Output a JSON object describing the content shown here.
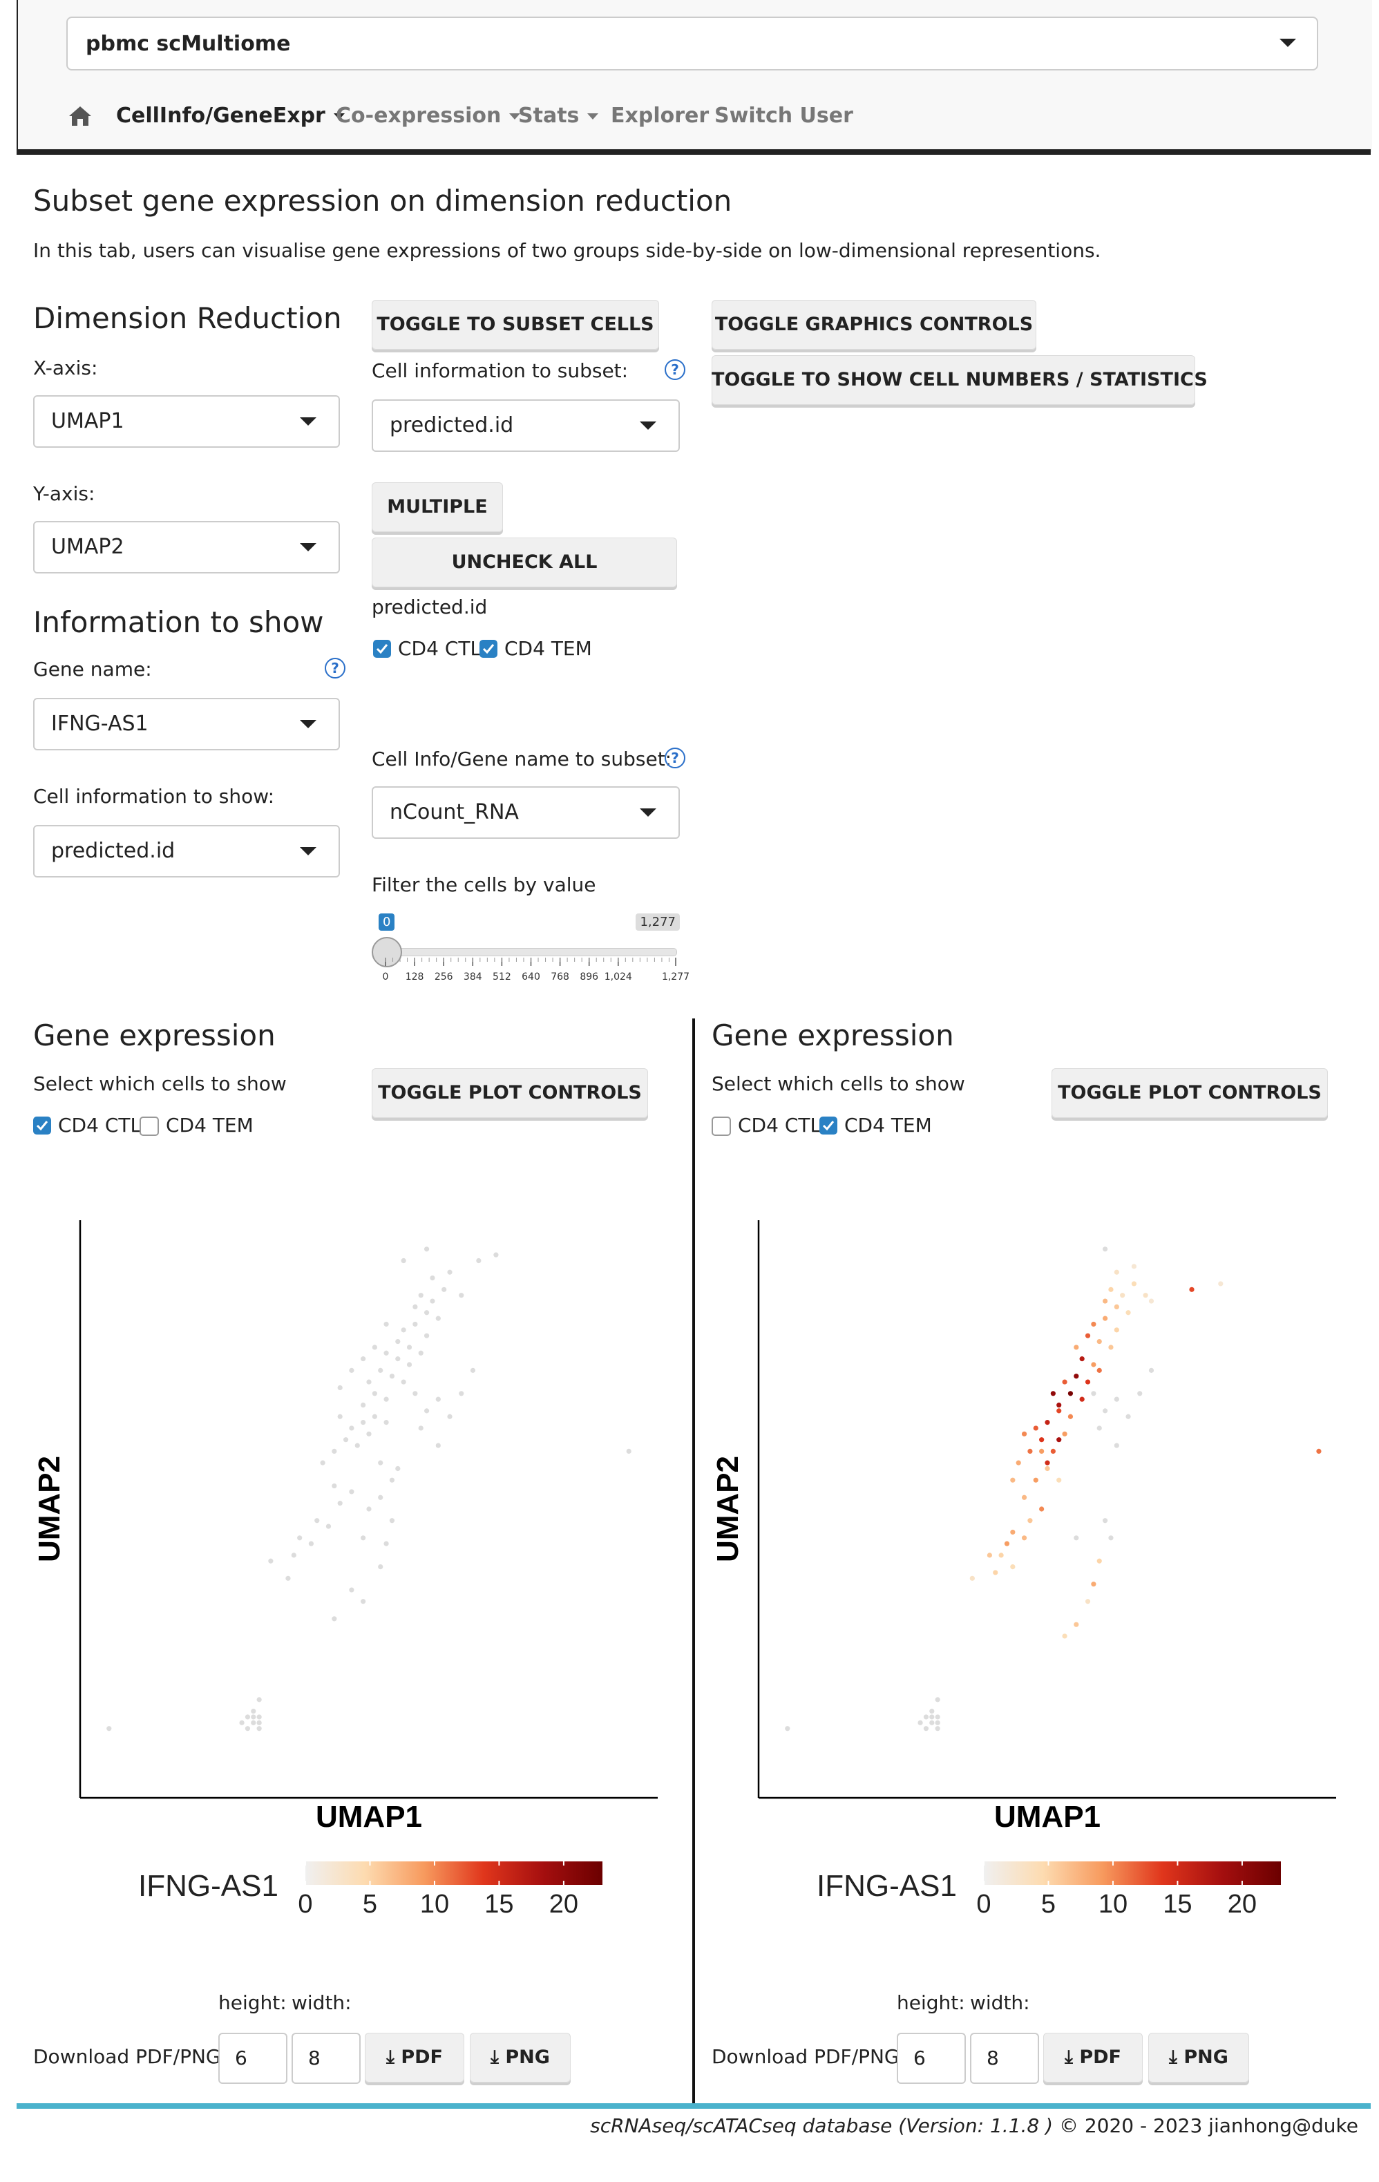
{
  "navbar": {
    "dataset": "pbmc scMultiome",
    "home_icon": "home-icon",
    "items": [
      {
        "label": "CellInfo/GeneExpr",
        "dropdown": true
      },
      {
        "label": "Co-expression",
        "dropdown": true
      },
      {
        "label": "Stats",
        "dropdown": true
      },
      {
        "label": "Explorer",
        "dropdown": false
      },
      {
        "label": "Switch User",
        "dropdown": false
      }
    ]
  },
  "page": {
    "title": "Subset gene expression on dimension reduction",
    "subtitle": "In this tab, users can visualise gene expressions of two groups side-by-side on low-dimensional representions."
  },
  "dimred": {
    "heading": "Dimension Reduction",
    "x_label": "X-axis:",
    "x_value": "UMAP1",
    "y_label": "Y-axis:",
    "y_value": "UMAP2"
  },
  "info": {
    "heading": "Information to show",
    "gene_label": "Gene name:",
    "gene_value": "IFNG-AS1",
    "cellinfo_label": "Cell information to show:",
    "cellinfo_value": "predicted.id"
  },
  "subset": {
    "toggle_label": "TOGGLE TO SUBSET CELLS",
    "cellinfo_label": "Cell information to subset:",
    "cellinfo_value": "predicted.id",
    "multiple_label": "MULTIPLE",
    "uncheck_label": "UNCHECK ALL",
    "group_label": "predicted.id",
    "options": [
      {
        "label": "CD4 CTL",
        "checked": true
      },
      {
        "label": "CD4 TEM",
        "checked": true
      }
    ],
    "gene_subset_label": "Cell Info/Gene name to subset:",
    "gene_subset_value": "nCount_RNA",
    "filter_label": "Filter the cells by value",
    "slider": {
      "min": 0,
      "max": 1277,
      "value_low_label": "0",
      "value_high_label": "1,277",
      "ticks": [
        "0",
        "128",
        "256",
        "384",
        "512",
        "640",
        "768",
        "896",
        "1,024",
        "1,277"
      ]
    }
  },
  "controls": {
    "graphics_label": "TOGGLE GRAPHICS CONTROLS",
    "stats_label": "TOGGLE TO SHOW CELL NUMBERS / STATISTICS"
  },
  "panels": [
    {
      "heading": "Gene expression",
      "select_label": "Select which cells to show",
      "toggle_label": "TOGGLE PLOT CONTROLS",
      "options": [
        {
          "label": "CD4 CTL",
          "checked": true
        },
        {
          "label": "CD4 TEM",
          "checked": false
        }
      ],
      "height_label": "height:",
      "width_label": "width:",
      "download_label": "Download PDF/PNG",
      "height_value": "6",
      "width_value": "8",
      "pdf_label": "PDF",
      "png_label": "PNG"
    },
    {
      "heading": "Gene expression",
      "select_label": "Select which cells to show",
      "toggle_label": "TOGGLE PLOT CONTROLS",
      "options": [
        {
          "label": "CD4 CTL",
          "checked": false
        },
        {
          "label": "CD4 TEM",
          "checked": true
        }
      ],
      "height_label": "height:",
      "width_label": "width:",
      "download_label": "Download PDF/PNG",
      "height_value": "6",
      "width_value": "8",
      "pdf_label": "PDF",
      "png_label": "PNG"
    }
  ],
  "chart_data": [
    {
      "type": "scatter",
      "xlabel": "UMAP1",
      "ylabel": "UMAP2",
      "legend_title": "IFNG-AS1",
      "colorbar_ticks": [
        "0",
        "5",
        "10",
        "15",
        "20"
      ],
      "colorbar_range": [
        0,
        23
      ],
      "colors": [
        "#f0f0f0",
        "#fddbb0",
        "#f79a5e",
        "#e0361c",
        "#a50f0f",
        "#6b0000"
      ],
      "cells_shown": "CD4 CTL",
      "points": [
        [
          0.05,
          0.12,
          0
        ],
        [
          0.28,
          0.13,
          0
        ],
        [
          0.29,
          0.14,
          0
        ],
        [
          0.3,
          0.13,
          0
        ],
        [
          0.29,
          0.12,
          0
        ],
        [
          0.31,
          0.14,
          0
        ],
        [
          0.3,
          0.15,
          0
        ],
        [
          0.31,
          0.12,
          0
        ],
        [
          0.3,
          0.14,
          0
        ],
        [
          0.31,
          0.17,
          0
        ],
        [
          0.31,
          0.13,
          0
        ],
        [
          0.44,
          0.31,
          0
        ],
        [
          0.47,
          0.36,
          0
        ],
        [
          0.49,
          0.34,
          0
        ],
        [
          0.52,
          0.4,
          0
        ],
        [
          0.53,
          0.44,
          0
        ],
        [
          0.54,
          0.48,
          0
        ],
        [
          0.49,
          0.45,
          0
        ],
        [
          0.5,
          0.5,
          0
        ],
        [
          0.43,
          0.47,
          0
        ],
        [
          0.45,
          0.51,
          0
        ],
        [
          0.44,
          0.54,
          0
        ],
        [
          0.47,
          0.53,
          0
        ],
        [
          0.52,
          0.52,
          0
        ],
        [
          0.54,
          0.55,
          0
        ],
        [
          0.52,
          0.58,
          0
        ],
        [
          0.55,
          0.57,
          0
        ],
        [
          0.42,
          0.58,
          0
        ],
        [
          0.44,
          0.6,
          0
        ],
        [
          0.46,
          0.62,
          0
        ],
        [
          0.48,
          0.61,
          0
        ],
        [
          0.5,
          0.63,
          0
        ],
        [
          0.47,
          0.64,
          0
        ],
        [
          0.51,
          0.66,
          0
        ],
        [
          0.53,
          0.65,
          0
        ],
        [
          0.49,
          0.68,
          0
        ],
        [
          0.51,
          0.7,
          0
        ],
        [
          0.53,
          0.69,
          0
        ],
        [
          0.5,
          0.72,
          0
        ],
        [
          0.52,
          0.74,
          0
        ],
        [
          0.54,
          0.73,
          0
        ],
        [
          0.56,
          0.72,
          0
        ],
        [
          0.55,
          0.76,
          0
        ],
        [
          0.57,
          0.75,
          0
        ],
        [
          0.53,
          0.77,
          0
        ],
        [
          0.55,
          0.79,
          0
        ],
        [
          0.57,
          0.78,
          0
        ],
        [
          0.59,
          0.77,
          0
        ],
        [
          0.56,
          0.81,
          0
        ],
        [
          0.58,
          0.82,
          0
        ],
        [
          0.6,
          0.8,
          0
        ],
        [
          0.58,
          0.85,
          0
        ],
        [
          0.6,
          0.84,
          0
        ],
        [
          0.62,
          0.83,
          0
        ],
        [
          0.59,
          0.87,
          0
        ],
        [
          0.61,
          0.86,
          0
        ],
        [
          0.63,
          0.88,
          0
        ],
        [
          0.61,
          0.9,
          0
        ],
        [
          0.64,
          0.91,
          0
        ],
        [
          0.58,
          0.7,
          0
        ],
        [
          0.6,
          0.67,
          0
        ],
        [
          0.62,
          0.69,
          0
        ],
        [
          0.59,
          0.64,
          0
        ],
        [
          0.62,
          0.61,
          0
        ],
        [
          0.64,
          0.66,
          0
        ],
        [
          0.66,
          0.7,
          0
        ],
        [
          0.68,
          0.74,
          0
        ],
        [
          0.33,
          0.41,
          0
        ],
        [
          0.37,
          0.42,
          0
        ],
        [
          0.38,
          0.45,
          0
        ],
        [
          0.4,
          0.44,
          0
        ],
        [
          0.41,
          0.48,
          0
        ],
        [
          0.36,
          0.38,
          0
        ],
        [
          0.66,
          0.87,
          0
        ],
        [
          0.69,
          0.93,
          0
        ],
        [
          0.72,
          0.94,
          0
        ],
        [
          0.95,
          0.6,
          0
        ],
        [
          0.56,
          0.93,
          0
        ],
        [
          0.6,
          0.95,
          0
        ],
        [
          0.45,
          0.71,
          0
        ],
        [
          0.47,
          0.74,
          0
        ],
        [
          0.49,
          0.76,
          0
        ],
        [
          0.51,
          0.78,
          0
        ],
        [
          0.53,
          0.82,
          0
        ],
        [
          0.49,
          0.65,
          0
        ],
        [
          0.45,
          0.66,
          0
        ]
      ]
    },
    {
      "type": "scatter",
      "xlabel": "UMAP1",
      "ylabel": "UMAP2",
      "legend_title": "IFNG-AS1",
      "colorbar_ticks": [
        "0",
        "5",
        "10",
        "15",
        "20"
      ],
      "colorbar_range": [
        0,
        23
      ],
      "colors": [
        "#f0f0f0",
        "#fddbb0",
        "#f79a5e",
        "#e0361c",
        "#a50f0f",
        "#6b0000"
      ],
      "cells_shown": "CD4 TEM",
      "points": [
        [
          0.05,
          0.12,
          0
        ],
        [
          0.28,
          0.13,
          0
        ],
        [
          0.29,
          0.14,
          0
        ],
        [
          0.3,
          0.13,
          0
        ],
        [
          0.29,
          0.12,
          0
        ],
        [
          0.31,
          0.14,
          0
        ],
        [
          0.3,
          0.15,
          0
        ],
        [
          0.31,
          0.12,
          0
        ],
        [
          0.3,
          0.14,
          0
        ],
        [
          0.31,
          0.17,
          0
        ],
        [
          0.31,
          0.13,
          0
        ],
        [
          0.53,
          0.28,
          4
        ],
        [
          0.55,
          0.3,
          6
        ],
        [
          0.57,
          0.34,
          3
        ],
        [
          0.58,
          0.37,
          8
        ],
        [
          0.59,
          0.41,
          5
        ],
        [
          0.55,
          0.45,
          0
        ],
        [
          0.6,
          0.48,
          0
        ],
        [
          0.61,
          0.45,
          0
        ],
        [
          0.42,
          0.42,
          5
        ],
        [
          0.44,
          0.46,
          8
        ],
        [
          0.47,
          0.48,
          6
        ],
        [
          0.49,
          0.5,
          10
        ],
        [
          0.46,
          0.52,
          7
        ],
        [
          0.48,
          0.55,
          9
        ],
        [
          0.5,
          0.57,
          6
        ],
        [
          0.52,
          0.55,
          4
        ],
        [
          0.45,
          0.58,
          8
        ],
        [
          0.47,
          0.6,
          11
        ],
        [
          0.49,
          0.62,
          14
        ],
        [
          0.51,
          0.6,
          12
        ],
        [
          0.53,
          0.63,
          9
        ],
        [
          0.5,
          0.65,
          16
        ],
        [
          0.52,
          0.67,
          13
        ],
        [
          0.54,
          0.66,
          10
        ],
        [
          0.52,
          0.68,
          18
        ],
        [
          0.54,
          0.7,
          22
        ],
        [
          0.56,
          0.69,
          15
        ],
        [
          0.53,
          0.72,
          12
        ],
        [
          0.55,
          0.73,
          20
        ],
        [
          0.57,
          0.72,
          14
        ],
        [
          0.59,
          0.74,
          11
        ],
        [
          0.56,
          0.76,
          17
        ],
        [
          0.58,
          0.75,
          9
        ],
        [
          0.55,
          0.78,
          8
        ],
        [
          0.57,
          0.8,
          12
        ],
        [
          0.59,
          0.79,
          7
        ],
        [
          0.61,
          0.78,
          6
        ],
        [
          0.58,
          0.82,
          10
        ],
        [
          0.6,
          0.83,
          8
        ],
        [
          0.62,
          0.81,
          5
        ],
        [
          0.6,
          0.86,
          7
        ],
        [
          0.62,
          0.85,
          6
        ],
        [
          0.64,
          0.84,
          4
        ],
        [
          0.61,
          0.88,
          5
        ],
        [
          0.63,
          0.87,
          3
        ],
        [
          0.65,
          0.89,
          4
        ],
        [
          0.62,
          0.91,
          3
        ],
        [
          0.65,
          0.92,
          2
        ],
        [
          0.58,
          0.7,
          0
        ],
        [
          0.6,
          0.67,
          0
        ],
        [
          0.62,
          0.69,
          0
        ],
        [
          0.59,
          0.64,
          0
        ],
        [
          0.62,
          0.61,
          0
        ],
        [
          0.64,
          0.66,
          0
        ],
        [
          0.66,
          0.7,
          0
        ],
        [
          0.68,
          0.74,
          0
        ],
        [
          0.37,
          0.38,
          3
        ],
        [
          0.4,
          0.42,
          6
        ],
        [
          0.43,
          0.44,
          9
        ],
        [
          0.44,
          0.4,
          4
        ],
        [
          0.46,
          0.45,
          7
        ],
        [
          0.41,
          0.39,
          5
        ],
        [
          0.67,
          0.87,
          3
        ],
        [
          0.68,
          0.86,
          2
        ],
        [
          0.75,
          0.88,
          13
        ],
        [
          0.8,
          0.89,
          2
        ],
        [
          0.97,
          0.6,
          11
        ],
        [
          0.6,
          0.95,
          0
        ],
        [
          0.48,
          0.64,
          12
        ],
        [
          0.5,
          0.58,
          15
        ],
        [
          0.46,
          0.63,
          10
        ],
        [
          0.52,
          0.62,
          18
        ],
        [
          0.49,
          0.6,
          9
        ],
        [
          0.51,
          0.7,
          20
        ],
        [
          0.44,
          0.55,
          7
        ]
      ]
    }
  ],
  "footer": {
    "italic": "scRNAseq/scATACseq database (Version: 1.1.8 )",
    "rest": " © 2020 - 2023 jianhong@duke"
  }
}
